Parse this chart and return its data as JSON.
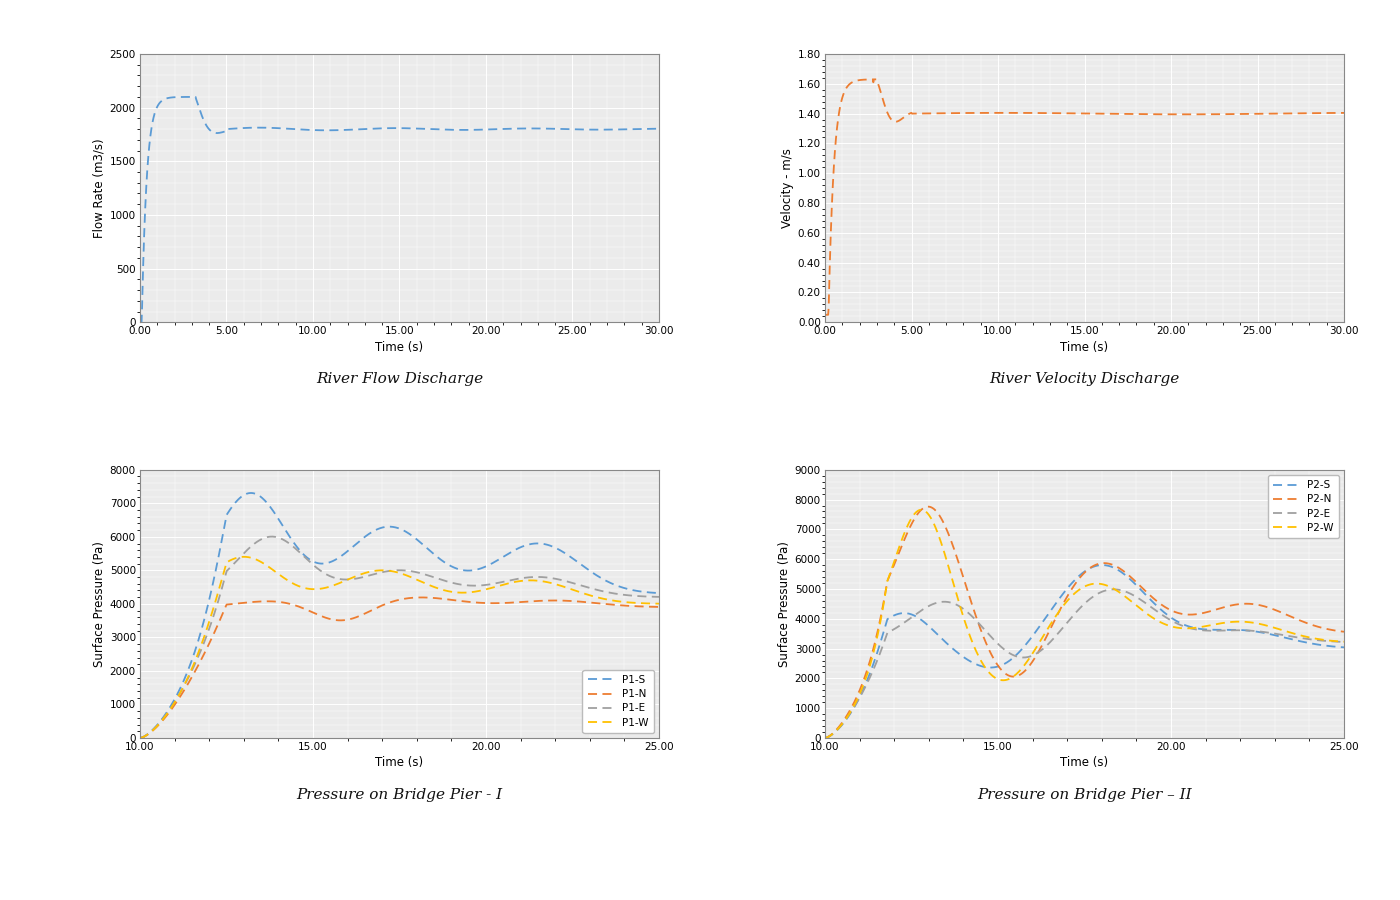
{
  "fig_width": 14.0,
  "fig_height": 9.0,
  "bg_color": "#ffffff",
  "plot_bg_color": "#ebebeb",
  "grid_color": "#ffffff",
  "flow_xlabel": "Time (s)",
  "flow_ylabel": "Flow Rate (m3/s)",
  "flow_xlim": [
    0.0,
    30.0
  ],
  "flow_ylim": [
    0,
    2500
  ],
  "flow_xticks": [
    0.0,
    5.0,
    10.0,
    15.0,
    20.0,
    25.0,
    30.0
  ],
  "flow_yticks": [
    0,
    500,
    1000,
    1500,
    2000,
    2500
  ],
  "flow_color": "#5B9BD5",
  "vel_xlabel": "Time (s)",
  "vel_ylabel": "Velocity - m/s",
  "vel_xlim": [
    0.0,
    30.0
  ],
  "vel_ylim": [
    0.0,
    1.8
  ],
  "vel_xticks": [
    0.0,
    5.0,
    10.0,
    15.0,
    20.0,
    25.0,
    30.0
  ],
  "vel_yticks": [
    0.0,
    0.2,
    0.4,
    0.6,
    0.8,
    1.0,
    1.2,
    1.4,
    1.6,
    1.8
  ],
  "vel_color": "#ED7D31",
  "p1_xlabel": "Time (s)",
  "p1_ylabel": "Surface Pressure (Pa)",
  "p1_xlim": [
    10.0,
    25.0
  ],
  "p1_ylim": [
    0,
    8000
  ],
  "p1_xticks": [
    10.0,
    15.0,
    20.0,
    25.0
  ],
  "p1_yticks": [
    0,
    1000,
    2000,
    3000,
    4000,
    5000,
    6000,
    7000,
    8000
  ],
  "p1_colors": [
    "#5B9BD5",
    "#ED7D31",
    "#A0A0A0",
    "#FFC000"
  ],
  "p1_labels": [
    "P1-S",
    "P1-N",
    "P1-E",
    "P1-W"
  ],
  "p2_xlabel": "Time (s)",
  "p2_ylabel": "Surface Pressure (Pa)",
  "p2_xlim": [
    10.0,
    25.0
  ],
  "p2_ylim": [
    0,
    9000
  ],
  "p2_xticks": [
    10.0,
    15.0,
    20.0,
    25.0
  ],
  "p2_yticks": [
    0,
    1000,
    2000,
    3000,
    4000,
    5000,
    6000,
    7000,
    8000,
    9000
  ],
  "p2_colors": [
    "#5B9BD5",
    "#ED7D31",
    "#A0A0A0",
    "#FFC000"
  ],
  "p2_labels": [
    "P2-S",
    "P2-N",
    "P2-E",
    "P2-W"
  ],
  "caption_flow": "River Flow Discharge",
  "caption_vel": "River Velocity Discharge",
  "caption_p1": "Pressure on Bridge Pier - I",
  "caption_p2": "Pressure on Bridge Pier – II"
}
